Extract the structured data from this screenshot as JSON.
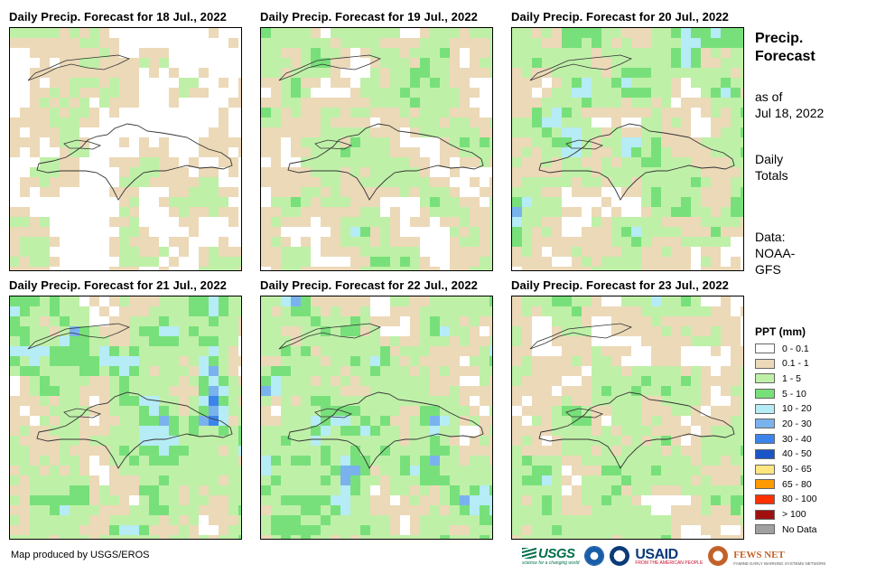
{
  "panels": [
    {
      "title": "Daily Precip. Forecast for 18 Jul., 2022"
    },
    {
      "title": "Daily Precip. Forecast for 19 Jul., 2022"
    },
    {
      "title": "Daily Precip. Forecast for 20 Jul., 2022"
    },
    {
      "title": "Daily Precip. Forecast for 21 Jul., 2022"
    },
    {
      "title": "Daily Precip. Forecast for 22 Jul., 2022"
    },
    {
      "title": "Daily Precip. Forecast for 23 Jul., 2022"
    }
  ],
  "sidebar": {
    "title": "Precip. Forecast",
    "as_of_label": "as of",
    "as_of_date": "Jul 18, 2022",
    "totals_line1": "Daily",
    "totals_line2": "Totals",
    "data_line1": "Data:",
    "data_line2": "NOAA-",
    "data_line3": "GFS"
  },
  "legend": {
    "title": "PPT (mm)",
    "items": [
      {
        "label": "0 - 0.1",
        "color": "#ffffff"
      },
      {
        "label": "0.1 - 1",
        "color": "#ecd9b8"
      },
      {
        "label": "1 - 5",
        "color": "#bff0a8"
      },
      {
        "label": "5 - 10",
        "color": "#78e07a"
      },
      {
        "label": "10 - 20",
        "color": "#b5ecf5"
      },
      {
        "label": "20 - 30",
        "color": "#7ab2ee"
      },
      {
        "label": "30 - 40",
        "color": "#3d84ea"
      },
      {
        "label": "40 - 50",
        "color": "#1a55c8"
      },
      {
        "label": "50 - 65",
        "color": "#ffe680"
      },
      {
        "label": "65 - 80",
        "color": "#ff9a00"
      },
      {
        "label": "80 - 100",
        "color": "#ff3000"
      },
      {
        "label": "> 100",
        "color": "#a01010"
      },
      {
        "label": "No Data",
        "color": "#a0a0a0"
      }
    ]
  },
  "credit": "Map produced by USGS/EROS",
  "logos": {
    "usgs": "USGS",
    "usgs_tagline": "science for a changing world",
    "usaid": "USAID",
    "usaid_tagline": "FROM THE AMERICAN PEOPLE",
    "fews": "FEWS NET",
    "fews_tagline": "FAMINE EARLY WARNING SYSTEMS NETWORK"
  }
}
